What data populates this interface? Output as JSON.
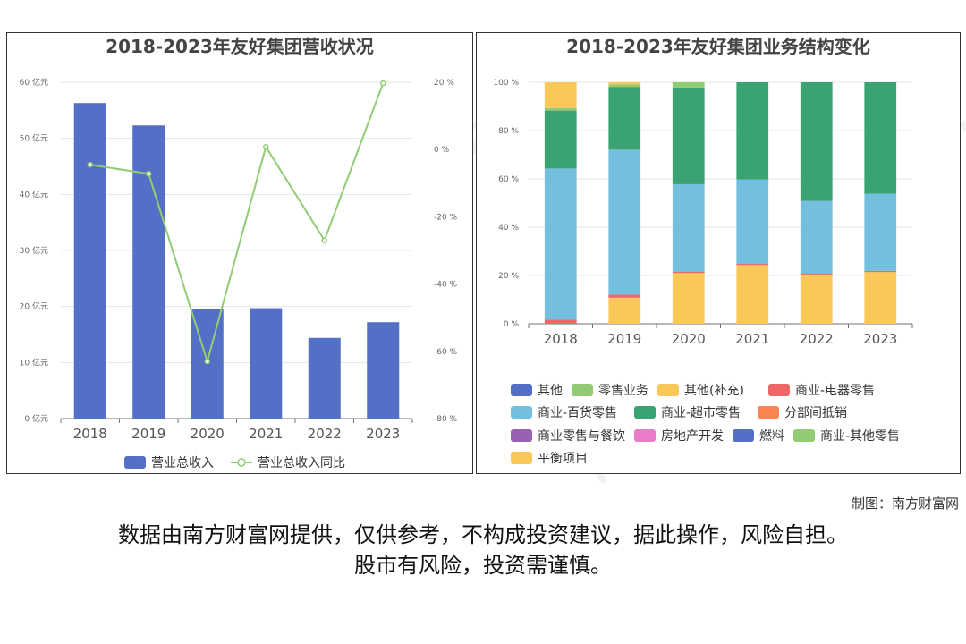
{
  "credit": "制图：南方财富网",
  "disclaimer": {
    "line1": "数据由南方财富网提供，仅供参考，不构成投资建议，据此操作，风险自担。",
    "line2": "股市有风险，投资需谨慎。"
  },
  "watermark": {
    "cn": "南方财富网",
    "url": "southmoney.com"
  },
  "chart_data": [
    {
      "type": "bar",
      "title": "2018-2023年友好集团营收状况",
      "categories": [
        "2018",
        "2019",
        "2020",
        "2021",
        "2022",
        "2023"
      ],
      "y_left": {
        "ticks": [
          "0 亿元",
          "10 亿元",
          "20 亿元",
          "30 亿元",
          "40 亿元",
          "50 亿元",
          "60 亿元"
        ],
        "ylim": [
          0,
          60
        ]
      },
      "y_right": {
        "ticks": [
          "-80 %",
          "-60 %",
          "-40 %",
          "-20 %",
          "0 %",
          "20 %"
        ],
        "ylim": [
          -80,
          20
        ]
      },
      "series": [
        {
          "name": "营业总收入",
          "type": "bar",
          "axis": "left",
          "color": "#5470c6",
          "values": [
            56.3,
            52.3,
            19.5,
            19.7,
            14.4,
            17.2
          ]
        },
        {
          "name": "营业总收入同比",
          "type": "line",
          "axis": "right",
          "color": "#91cc75",
          "values": [
            -4.5,
            -7.2,
            -63.0,
            0.8,
            -27.0,
            19.7
          ]
        }
      ],
      "legend": "bottom"
    },
    {
      "type": "bar",
      "stacked": true,
      "title": "2018-2023年友好集团业务结构变化",
      "categories": [
        "2018",
        "2019",
        "2020",
        "2021",
        "2022",
        "2023"
      ],
      "y_ticks": [
        "0 %",
        "20 %",
        "40 %",
        "60 %",
        "80 %",
        "100 %"
      ],
      "ylim": [
        0,
        100
      ],
      "series": [
        {
          "name": "其他",
          "color": "#5470c6",
          "values": [
            0,
            0,
            0,
            0,
            0,
            0
          ]
        },
        {
          "name": "零售业务",
          "color": "#91cc75",
          "values": [
            0,
            0,
            0,
            0,
            0,
            0
          ]
        },
        {
          "name": "其他(补充)",
          "color": "#fac858",
          "values": [
            0,
            10.8,
            21.0,
            24.3,
            20.4,
            21.4
          ]
        },
        {
          "name": "商业-电器零售",
          "color": "#ee6666",
          "values": [
            1.7,
            1.3,
            0.5,
            0.5,
            0.5,
            0.5
          ]
        },
        {
          "name": "商业-百货零售",
          "color": "#73c0de",
          "values": [
            62.6,
            60.0,
            36.3,
            35.0,
            30.0,
            32.0
          ]
        },
        {
          "name": "商业-超市零售",
          "color": "#3ba272",
          "values": [
            24.0,
            26.0,
            40.0,
            40.2,
            49.1,
            46.1
          ]
        },
        {
          "name": "分部间抵销",
          "color": "#fc8452",
          "values": [
            0,
            0,
            0,
            0,
            0,
            0
          ]
        },
        {
          "name": "商业零售与餐饮",
          "color": "#9a60b4",
          "values": [
            0,
            0,
            0,
            0,
            0,
            0
          ]
        },
        {
          "name": "房地产开发",
          "color": "#ea7ccc",
          "values": [
            0,
            0,
            0,
            0,
            0,
            0
          ]
        },
        {
          "name": "燃料",
          "color": "#5470c6",
          "values": [
            0,
            0,
            0,
            0,
            0,
            0
          ]
        },
        {
          "name": "商业-其他零售",
          "color": "#91cc75",
          "values": [
            1.0,
            1.0,
            2.2,
            0,
            0,
            0
          ]
        },
        {
          "name": "平衡项目",
          "color": "#fac858",
          "values": [
            10.7,
            0.9,
            0,
            0,
            0,
            0
          ]
        }
      ],
      "legend": "bottom"
    }
  ]
}
